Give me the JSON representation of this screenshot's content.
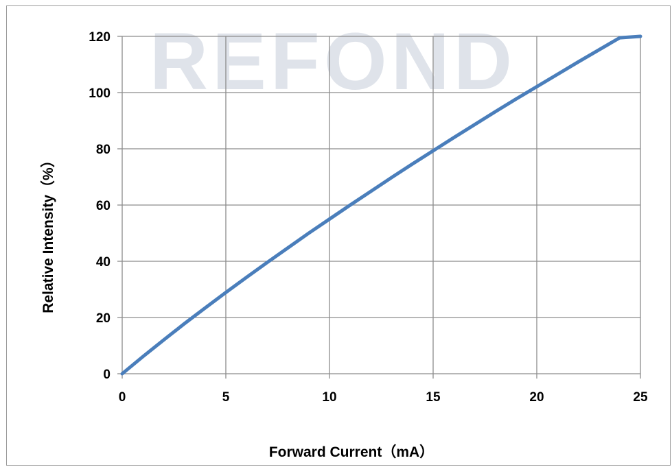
{
  "watermark": {
    "text": "REFOND"
  },
  "chart_data": {
    "type": "line",
    "title": "",
    "xlabel": "Forward Current（mA）",
    "ylabel": "Relative Intensity（%）",
    "xlim": [
      0,
      25
    ],
    "ylim": [
      0,
      120
    ],
    "xticks": [
      0,
      5,
      10,
      15,
      20,
      25
    ],
    "yticks": [
      0,
      20,
      40,
      60,
      80,
      100,
      120
    ],
    "grid": true,
    "legend": "none",
    "series": [
      {
        "color": "#4a7ebb",
        "x": [
          0,
          1,
          2,
          3,
          4,
          5,
          6,
          7,
          8,
          9,
          10,
          11,
          12,
          13,
          14,
          15,
          16,
          17,
          18,
          19,
          20,
          21,
          22,
          23,
          24,
          25
        ],
        "y": [
          0,
          6.1,
          12.0,
          17.8,
          23.4,
          28.9,
          34.3,
          39.6,
          44.8,
          50.0,
          55.0,
          60.0,
          64.9,
          69.8,
          74.6,
          79.3,
          84.0,
          88.6,
          93.2,
          97.7,
          102.1,
          106.5,
          110.9,
          115.2,
          119.5,
          120
        ]
      }
    ]
  }
}
